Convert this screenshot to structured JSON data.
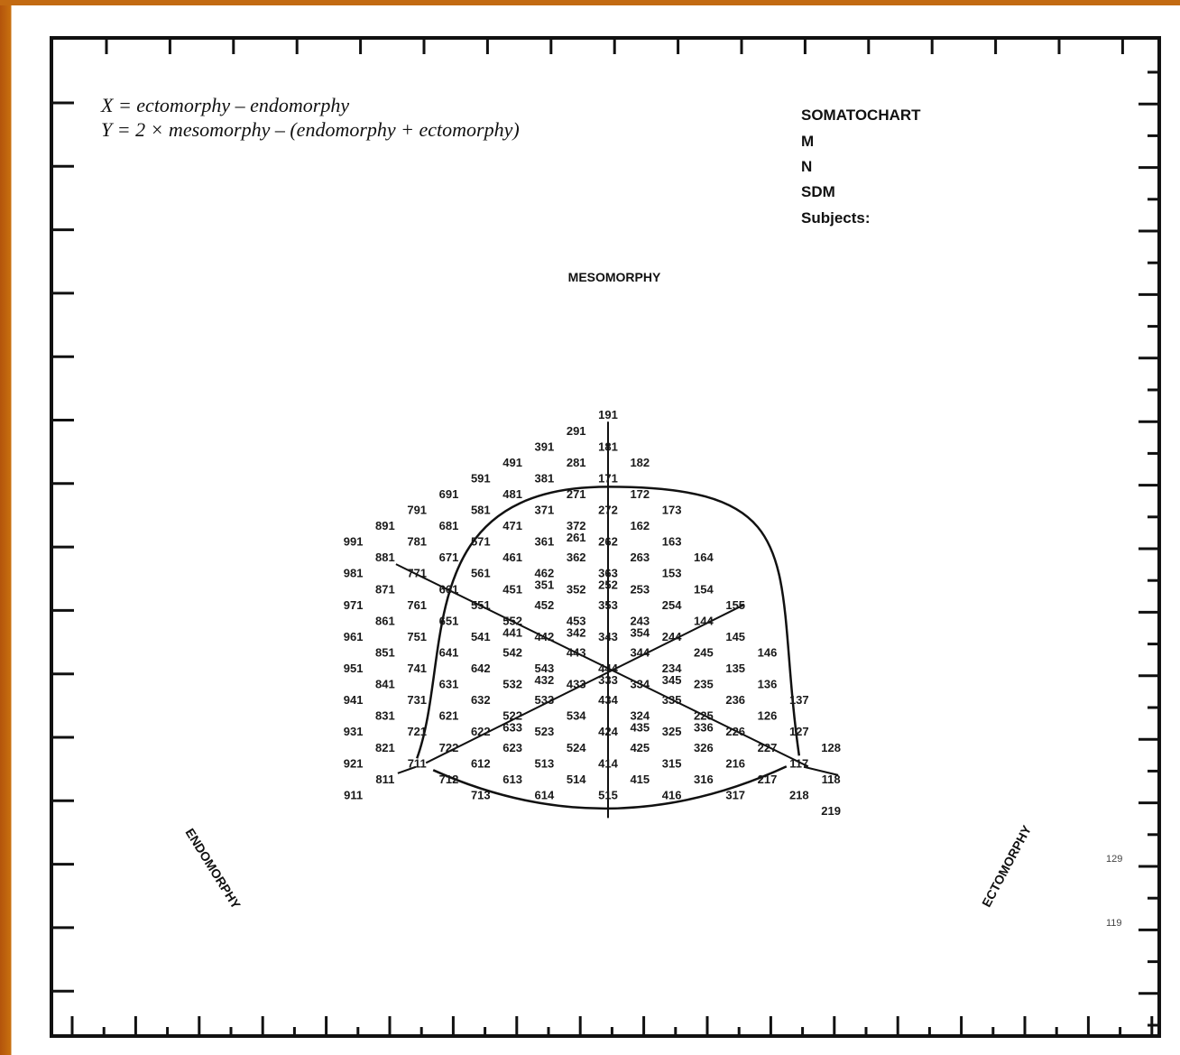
{
  "formula": {
    "x": "X = ectomorphy – endomorphy",
    "y": "Y = 2 × mesomorphy – (endomorphy  + ectomorphy)"
  },
  "legend": {
    "title": "SOMATOCHART",
    "items": [
      "M",
      "N",
      "SDM",
      "Subjects:"
    ]
  },
  "axis_labels": {
    "mesomorphy": "MESOMORPHY",
    "endomorphy": "ENDOMORPHY",
    "ectomorphy": "ECTOMORPHY"
  },
  "side_marks": [
    "129",
    "119"
  ],
  "somatotypes": [
    "191",
    "181",
    "291",
    "391",
    "281",
    "182",
    "491",
    "381",
    "171",
    "591",
    "481",
    "271",
    "172",
    "691",
    "371",
    "272",
    "173",
    "791",
    "581",
    "471",
    "372",
    "261",
    "162",
    "891",
    "681",
    "361",
    "262",
    "163",
    "991",
    "781",
    "571",
    "461",
    "362",
    "263",
    "164",
    "881",
    "671",
    "561",
    "462",
    "351",
    "363",
    "252",
    "153",
    "981",
    "771",
    "451",
    "352",
    "253",
    "154",
    "871",
    "661",
    "551",
    "452",
    "353",
    "254",
    "155",
    "971",
    "761",
    "552",
    "441",
    "453",
    "342",
    "243",
    "354",
    "144",
    "861",
    "651",
    "541",
    "442",
    "343",
    "244",
    "145",
    "961",
    "751",
    "641",
    "542",
    "443",
    "344",
    "245",
    "146",
    "851",
    "741",
    "642",
    "543",
    "432",
    "444",
    "333",
    "234",
    "345",
    "135",
    "951",
    "631",
    "532",
    "433",
    "334",
    "235",
    "136",
    "841",
    "731",
    "632",
    "533",
    "434",
    "335",
    "236",
    "137",
    "941",
    "621",
    "522",
    "633",
    "534",
    "324",
    "435",
    "225",
    "336",
    "126",
    "831",
    "721",
    "622",
    "523",
    "424",
    "325",
    "226",
    "127",
    "931",
    "722",
    "623",
    "524",
    "425",
    "326",
    "227",
    "128",
    "821",
    "711",
    "612",
    "513",
    "414",
    "315",
    "216",
    "117",
    "921",
    "712",
    "613",
    "514",
    "415",
    "316",
    "217",
    "118",
    "811",
    "713",
    "614",
    "515",
    "416",
    "317",
    "218",
    "911",
    "219"
  ]
}
